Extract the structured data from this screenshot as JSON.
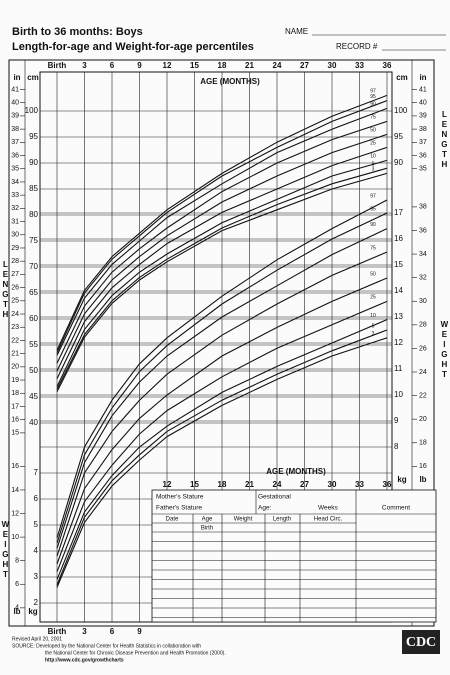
{
  "header": {
    "title": "Birth to 36 months: Boys",
    "subtitle": "Length-for-age and Weight-for-age percentiles",
    "name": "NAME",
    "record": "RECORD #"
  },
  "side_labels": {
    "length": "LENGTH",
    "weight": "WEIGHT"
  },
  "chart_data": [
    {
      "type": "line",
      "x_label": "AGE (MONTHS)",
      "y_unit": "cm",
      "y2_unit": "in",
      "x": [
        0,
        3,
        6,
        9,
        12,
        18,
        24,
        30,
        36
      ],
      "xlim": [
        0,
        36
      ],
      "xticks": [
        {
          "value": 0,
          "label": "Birth"
        },
        3,
        6,
        9,
        12,
        15,
        18,
        21,
        24,
        27,
        30,
        33,
        36
      ],
      "ylim": [
        38,
        105
      ],
      "yticks": [
        40,
        45,
        50,
        55,
        60,
        65,
        70,
        75,
        80,
        85,
        90,
        95,
        100
      ],
      "y2lim": [
        14.96,
        41.34
      ],
      "y2ticks": [
        15,
        16,
        17,
        18,
        19,
        20,
        21,
        22,
        23,
        24,
        25,
        26,
        27,
        28,
        29,
        30,
        31,
        32,
        33,
        34,
        35,
        36,
        37,
        38,
        39,
        40,
        41
      ],
      "grid": true,
      "series": [
        {
          "name": "97",
          "color": "#111111",
          "values": [
            54,
            65.5,
            72,
            76.5,
            81,
            88,
            94,
            99,
            103
          ]
        },
        {
          "name": "95",
          "color": "#111111",
          "values": [
            53.5,
            65,
            71.5,
            76,
            80.5,
            87.5,
            93,
            98,
            102
          ]
        },
        {
          "name": "90",
          "color": "#111111",
          "values": [
            53,
            64,
            70.5,
            75,
            79.5,
            86,
            92,
            96.5,
            100.5
          ]
        },
        {
          "name": "75",
          "color": "#111111",
          "values": [
            51.5,
            62.5,
            69,
            73.5,
            77.5,
            84.5,
            90,
            94.5,
            98
          ]
        },
        {
          "name": "50",
          "color": "#111111",
          "values": [
            50,
            61,
            67.5,
            72,
            76,
            82.5,
            87.5,
            92,
            95.5
          ]
        },
        {
          "name": "25",
          "color": "#111111",
          "values": [
            48.5,
            59.5,
            66,
            70.5,
            74.5,
            80.5,
            85,
            89.5,
            93
          ]
        },
        {
          "name": "10",
          "color": "#111111",
          "values": [
            47,
            58,
            64.5,
            69,
            72.5,
            78.5,
            83,
            87.5,
            90.5
          ]
        },
        {
          "name": "5",
          "color": "#111111",
          "values": [
            46.5,
            57,
            63.5,
            68,
            71.5,
            77.5,
            82,
            86,
            89
          ]
        },
        {
          "name": "3",
          "color": "#111111",
          "values": [
            46,
            56.5,
            63,
            67.5,
            71,
            77,
            81,
            85,
            88
          ]
        }
      ]
    },
    {
      "type": "line",
      "x_label": "AGE (MONTHS)",
      "y_unit": "kg",
      "y2_unit": "lb",
      "x": [
        0,
        3,
        6,
        9,
        12,
        18,
        24,
        30,
        36
      ],
      "xlim": [
        0,
        36
      ],
      "xticks": [
        {
          "value": 0,
          "label": "Birth"
        },
        3,
        6,
        9,
        12,
        15,
        18,
        21,
        24,
        27,
        30,
        33,
        36
      ],
      "ylim": [
        1.5,
        18.5
      ],
      "yticks": [
        2,
        3,
        4,
        5,
        6,
        7,
        8,
        9,
        10,
        11,
        12,
        13,
        14,
        15,
        16,
        17
      ],
      "y2lim": [
        3.31,
        40.79
      ],
      "y2ticks": [
        4,
        6,
        8,
        10,
        12,
        14,
        16,
        18,
        20,
        22,
        24,
        26,
        28,
        30,
        32,
        34,
        36,
        38
      ],
      "grid": true,
      "series": [
        {
          "name": "97",
          "color": "#111111",
          "values": [
            4.5,
            8,
            9.8,
            11.2,
            12.2,
            13.8,
            15.2,
            16.4,
            17.5
          ]
        },
        {
          "name": "95",
          "color": "#111111",
          "values": [
            4.3,
            7.7,
            9.5,
            10.9,
            11.9,
            13.5,
            14.8,
            16,
            17
          ]
        },
        {
          "name": "90",
          "color": "#111111",
          "values": [
            4.1,
            7.4,
            9.2,
            10.5,
            11.5,
            13,
            14.2,
            15.4,
            16.4
          ]
        },
        {
          "name": "75",
          "color": "#111111",
          "values": [
            3.8,
            7,
            8.6,
            9.8,
            10.8,
            12.3,
            13.5,
            14.6,
            15.5
          ]
        },
        {
          "name": "50",
          "color": "#111111",
          "values": [
            3.5,
            6.4,
            7.9,
            9.1,
            10,
            11.5,
            12.6,
            13.6,
            14.5
          ]
        },
        {
          "name": "25",
          "color": "#111111",
          "values": [
            3.2,
            5.9,
            7.3,
            8.5,
            9.4,
            10.7,
            11.8,
            12.7,
            13.6
          ]
        },
        {
          "name": "10",
          "color": "#111111",
          "values": [
            2.9,
            5.5,
            6.9,
            8,
            8.8,
            10.1,
            11.1,
            12,
            12.9
          ]
        },
        {
          "name": "5",
          "color": "#111111",
          "values": [
            2.7,
            5.3,
            6.7,
            7.7,
            8.6,
            9.8,
            10.8,
            11.7,
            12.5
          ]
        },
        {
          "name": "3",
          "color": "#111111",
          "values": [
            2.6,
            5.1,
            6.5,
            7.5,
            8.4,
            9.6,
            10.6,
            11.5,
            12.2
          ]
        }
      ]
    }
  ],
  "table": {
    "mother": "Mother's Stature",
    "gestational": "Gestational",
    "father": "Father's Stature",
    "age": "Age:",
    "weeks": "Weeks",
    "comment": "Comment",
    "columns": [
      "Date",
      "Age",
      "Weight",
      "Length",
      "Head Circ."
    ],
    "birth": "Birth"
  },
  "footer": {
    "revised": "Revised April 20, 2001",
    "source": "SOURCE: Developed by the National Center for Health Statistics in collaboration with",
    "source2": "the National Center for Chronic Disease Prevention and Health Promotion (2000).",
    "url": "http://www.cdc.gov/growthcharts",
    "logo": "CDC"
  }
}
